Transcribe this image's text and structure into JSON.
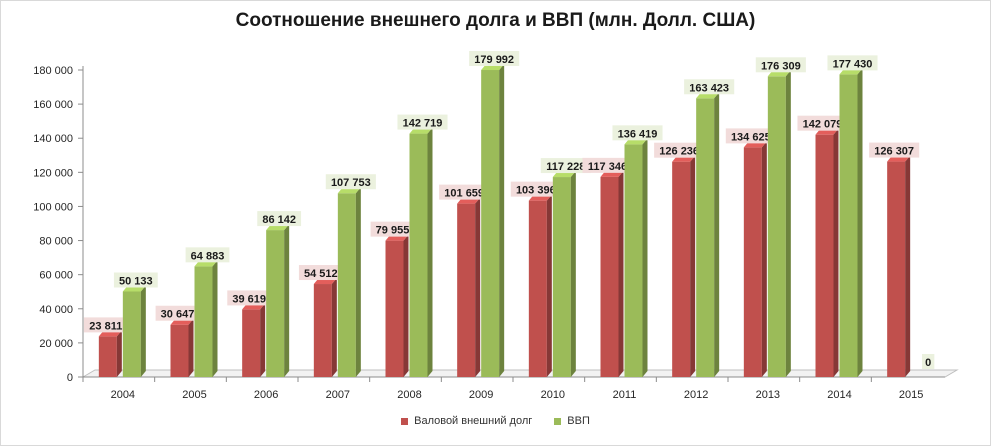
{
  "chart_data": {
    "type": "bar",
    "title": "Соотношение  внешнего долга и ВВП (млн. Долл. США)",
    "categories": [
      "2004",
      "2005",
      "2006",
      "2007",
      "2008",
      "2009",
      "2010",
      "2011",
      "2012",
      "2013",
      "2014",
      "2015"
    ],
    "series": [
      {
        "name": "Валовой внешний  долг",
        "color": "#c0504d",
        "values": [
          23811,
          30647,
          39619,
          54512,
          79955,
          101659,
          103396,
          117346,
          126236,
          134625,
          142079,
          126307
        ],
        "labels": [
          "23 811",
          "30 647",
          "39 619",
          "54 512",
          "79 955",
          "101 659",
          "103 396",
          "117 346",
          "126 236",
          "134 625",
          "142 079",
          "126 307"
        ]
      },
      {
        "name": "ВВП",
        "color": "#9bbb59",
        "values": [
          50133,
          64883,
          86142,
          107753,
          142719,
          179992,
          117228,
          136419,
          163423,
          176309,
          177430,
          0
        ],
        "labels": [
          "50 133",
          "64 883",
          "86 142",
          "107 753",
          "142 719",
          "179 992",
          "117 228",
          "136 419",
          "163 423",
          "176 309",
          "177 430",
          "0"
        ]
      }
    ],
    "ylim": [
      0,
      180000
    ],
    "yticks": [
      "0",
      "20 000",
      "40 000",
      "60 000",
      "80 000",
      "100 000",
      "120 000",
      "140 000",
      "160 000",
      "180 000"
    ],
    "grid": false,
    "legend": "bottom",
    "style": "3d-clustered-column"
  }
}
